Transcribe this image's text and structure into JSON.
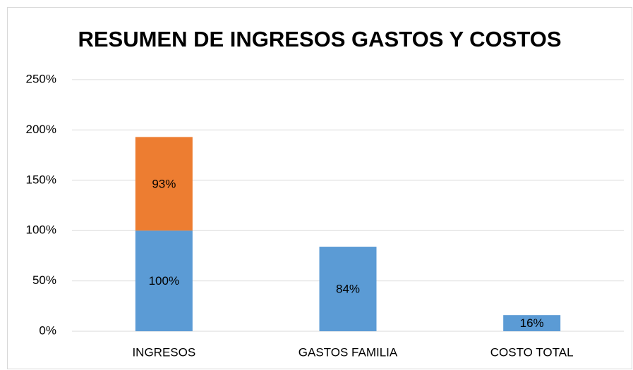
{
  "chart_data": {
    "type": "bar",
    "stacked": true,
    "title": "RESUMEN DE INGRESOS GASTOS Y COSTOS",
    "categories": [
      "INGRESOS",
      "GASTOS FAMILIA",
      "COSTO TOTAL"
    ],
    "series": [
      {
        "color": "#5b9bd5",
        "values": [
          100,
          84,
          16
        ],
        "value_labels": [
          "100%",
          "84%",
          "16%"
        ]
      },
      {
        "color": "#ed7d31",
        "values": [
          93,
          null,
          null
        ],
        "value_labels": [
          "93%",
          null,
          null
        ]
      }
    ],
    "ylim": [
      0,
      250
    ],
    "yticks": [
      {
        "value": 0,
        "label": "0%"
      },
      {
        "value": 50,
        "label": "50%"
      },
      {
        "value": 100,
        "label": "100%"
      },
      {
        "value": 150,
        "label": "150%"
      },
      {
        "value": 200,
        "label": "200%"
      },
      {
        "value": 250,
        "label": "250%"
      }
    ],
    "grid": true
  }
}
